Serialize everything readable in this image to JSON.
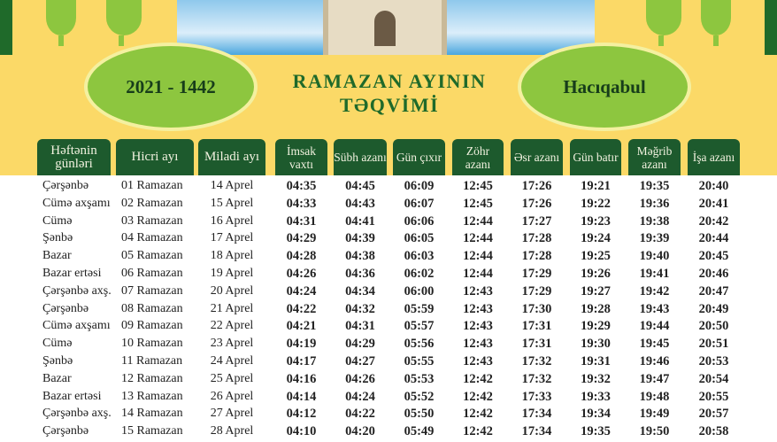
{
  "header": {
    "year_label": "2021 - 1442",
    "title_line1": "RAMAZAN AYININ",
    "title_line2": "TƏQVİMİ",
    "city": "Hacıqabul"
  },
  "columns": [
    "Həftənin günləri",
    "Hicri ayı",
    "Miladi ayı",
    "İmsak vaxtı",
    "Sübh azanı",
    "Gün çıxır",
    "Zöhr azanı",
    "Əsr azanı",
    "Gün batır",
    "Məğrib azanı",
    "İşa azanı"
  ],
  "rows": [
    [
      "Çərşənbə",
      "01 Ramazan",
      "14 Aprel",
      "04:35",
      "04:45",
      "06:09",
      "12:45",
      "17:26",
      "19:21",
      "19:35",
      "20:40"
    ],
    [
      "Cümə axşamı",
      "02 Ramazan",
      "15 Aprel",
      "04:33",
      "04:43",
      "06:07",
      "12:45",
      "17:26",
      "19:22",
      "19:36",
      "20:41"
    ],
    [
      "Cümə",
      "03 Ramazan",
      "16 Aprel",
      "04:31",
      "04:41",
      "06:06",
      "12:44",
      "17:27",
      "19:23",
      "19:38",
      "20:42"
    ],
    [
      "Şənbə",
      "04 Ramazan",
      "17 Aprel",
      "04:29",
      "04:39",
      "06:05",
      "12:44",
      "17:28",
      "19:24",
      "19:39",
      "20:44"
    ],
    [
      "Bazar",
      "05 Ramazan",
      "18 Aprel",
      "04:28",
      "04:38",
      "06:03",
      "12:44",
      "17:28",
      "19:25",
      "19:40",
      "20:45"
    ],
    [
      "Bazar ertəsi",
      "06 Ramazan",
      "19 Aprel",
      "04:26",
      "04:36",
      "06:02",
      "12:44",
      "17:29",
      "19:26",
      "19:41",
      "20:46"
    ],
    [
      "Çərşənbə axş.",
      "07 Ramazan",
      "20 Aprel",
      "04:24",
      "04:34",
      "06:00",
      "12:43",
      "17:29",
      "19:27",
      "19:42",
      "20:47"
    ],
    [
      "Çərşənbə",
      "08 Ramazan",
      "21 Aprel",
      "04:22",
      "04:32",
      "05:59",
      "12:43",
      "17:30",
      "19:28",
      "19:43",
      "20:49"
    ],
    [
      "Cümə axşamı",
      "09 Ramazan",
      "22 Aprel",
      "04:21",
      "04:31",
      "05:57",
      "12:43",
      "17:31",
      "19:29",
      "19:44",
      "20:50"
    ],
    [
      "Cümə",
      "10 Ramazan",
      "23 Aprel",
      "04:19",
      "04:29",
      "05:56",
      "12:43",
      "17:31",
      "19:30",
      "19:45",
      "20:51"
    ],
    [
      "Şənbə",
      "11 Ramazan",
      "24 Aprel",
      "04:17",
      "04:27",
      "05:55",
      "12:43",
      "17:32",
      "19:31",
      "19:46",
      "20:53"
    ],
    [
      "Bazar",
      "12 Ramazan",
      "25 Aprel",
      "04:16",
      "04:26",
      "05:53",
      "12:42",
      "17:32",
      "19:32",
      "19:47",
      "20:54"
    ],
    [
      "Bazar ertəsi",
      "13 Ramazan",
      "26 Aprel",
      "04:14",
      "04:24",
      "05:52",
      "12:42",
      "17:33",
      "19:33",
      "19:48",
      "20:55"
    ],
    [
      "Çərşənbə axş.",
      "14 Ramazan",
      "27 Aprel",
      "04:12",
      "04:22",
      "05:50",
      "12:42",
      "17:34",
      "19:34",
      "19:49",
      "20:57"
    ],
    [
      "Çərşənbə",
      "15 Ramazan",
      "28 Aprel",
      "04:10",
      "04:20",
      "05:49",
      "12:42",
      "17:34",
      "19:35",
      "19:50",
      "20:58"
    ]
  ],
  "colors": {
    "dark_green": "#1d5a2d",
    "light_green": "#8dc63f",
    "yellow": "#fbd967"
  }
}
